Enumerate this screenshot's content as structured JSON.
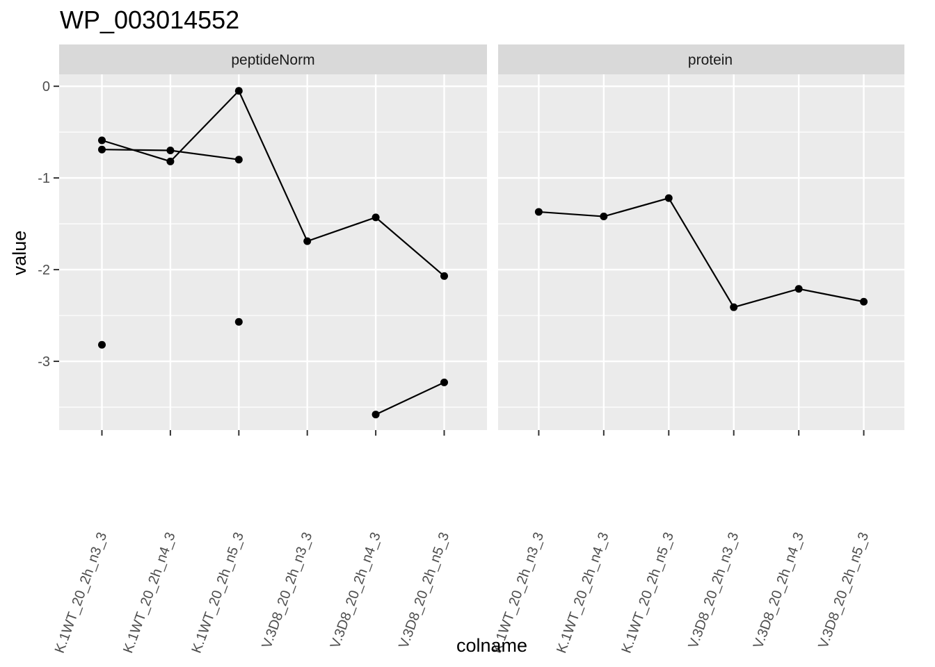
{
  "chart_data": {
    "type": "line",
    "title": "WP_003014552",
    "xlabel": "colname",
    "ylabel": "value",
    "ylim": [
      -3.75,
      0.13
    ],
    "y_ticks": [
      0,
      -1,
      -2,
      -3
    ],
    "y_tick_labels": [
      "0",
      "-1",
      "-2",
      "-3"
    ],
    "grid": true,
    "legend": "none",
    "colors": {
      "panel_background": "#ebebeb",
      "strip_background": "#d9d9d9",
      "grid": "#ffffff",
      "series": "#000000"
    },
    "categories": [
      "K.1WT_20_2h_n3_3",
      "K.1WT_20_2h_n4_3",
      "K.1WT_20_2h_n5_3",
      "V.3D8_20_2h_n3_3",
      "V.3D8_20_2h_n4_3",
      "V.3D8_20_2h_n5_3"
    ],
    "facets": [
      {
        "label": "peptideNorm",
        "series": [
          {
            "values": [
              -0.59,
              -0.82,
              -0.05,
              -1.69,
              -1.43,
              -2.07
            ]
          },
          {
            "values": [
              -0.69,
              -0.7,
              -0.8,
              null,
              null,
              null
            ]
          },
          {
            "values": [
              -2.82,
              null,
              -2.57,
              null,
              -3.58,
              -3.23
            ]
          }
        ]
      },
      {
        "label": "protein",
        "series": [
          {
            "values": [
              -1.37,
              -1.42,
              -1.22,
              -2.41,
              -2.21,
              -2.35
            ]
          }
        ]
      }
    ]
  }
}
